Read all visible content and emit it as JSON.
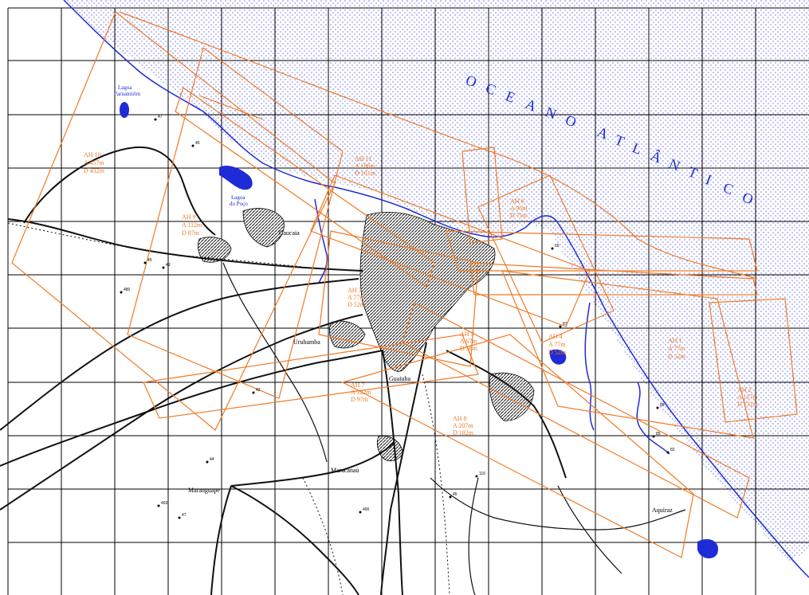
{
  "ocean": {
    "letters": [
      "O",
      "C",
      "E",
      "A",
      "N",
      "O",
      " ",
      "A",
      "T",
      "L",
      "Â",
      "N",
      "T",
      "I",
      "C",
      "O"
    ]
  },
  "places": [
    {
      "id": "caucaia",
      "label": "Caucaia"
    },
    {
      "id": "lagoa-parnamirim",
      "label1": "Lagoa",
      "label2": "Parnamirim"
    },
    {
      "id": "lagoa-poco",
      "label1": "Lagoa",
      "label2": "do Poço"
    },
    {
      "id": "urubamba",
      "label": "Urubamba"
    },
    {
      "id": "maracanau",
      "label": "Maracanaú"
    },
    {
      "id": "maranguape",
      "label": "Maranguape"
    },
    {
      "id": "aquiraz",
      "label": "Aquiraz"
    },
    {
      "id": "fortaleza-south",
      "label": "Guaiuba"
    }
  ],
  "ah_labels": [
    {
      "id": "ah10",
      "l1": "AH 10",
      "l2": "A 457m",
      "l3": "D 432m"
    },
    {
      "id": "ah9",
      "l1": "AH 9",
      "l2": "A 112m",
      "l3": "D 87m"
    },
    {
      "id": "ah3",
      "l1": "AH 3",
      "l2": "A 77m",
      "l3": "D 52m"
    },
    {
      "id": "ah5",
      "l1": "AH 5",
      "l2": "A 67m",
      "l3": "D 56m"
    },
    {
      "id": "ah7",
      "l1": "AH 7",
      "l2": "A 122m",
      "l3": "D 97m"
    },
    {
      "id": "ah4",
      "l1": "AH 4",
      "l2": "A 77m",
      "l3": "D 52m"
    },
    {
      "id": "ah8",
      "l1": "AH 8",
      "l2": "A 207m",
      "l3": "D 182m"
    },
    {
      "id": "ah1",
      "l1": "AH 1",
      "l2": "A 77m",
      "l3": "D 52m"
    },
    {
      "id": "ah2",
      "l1": "AH 2",
      "l2": "A 157m",
      "l3": "D 132m"
    },
    {
      "id": "ah6",
      "l1": "AH 6",
      "l2": "A 96m",
      "l3": "D 71m"
    },
    {
      "id": "ah11",
      "l1": "AH 11",
      "l2": "A 186m",
      "l3": "D 161m"
    }
  ],
  "elevations": [
    "47",
    "45",
    "45",
    "49",
    "42",
    "480",
    "44",
    "493",
    "47",
    "490",
    "89",
    "87",
    "65",
    "82",
    "45",
    "116",
    "85"
  ],
  "colors": {
    "coast": "#1f2bd6",
    "procedure": "#f07a26",
    "grid": "#000000",
    "urban": "#000000"
  }
}
